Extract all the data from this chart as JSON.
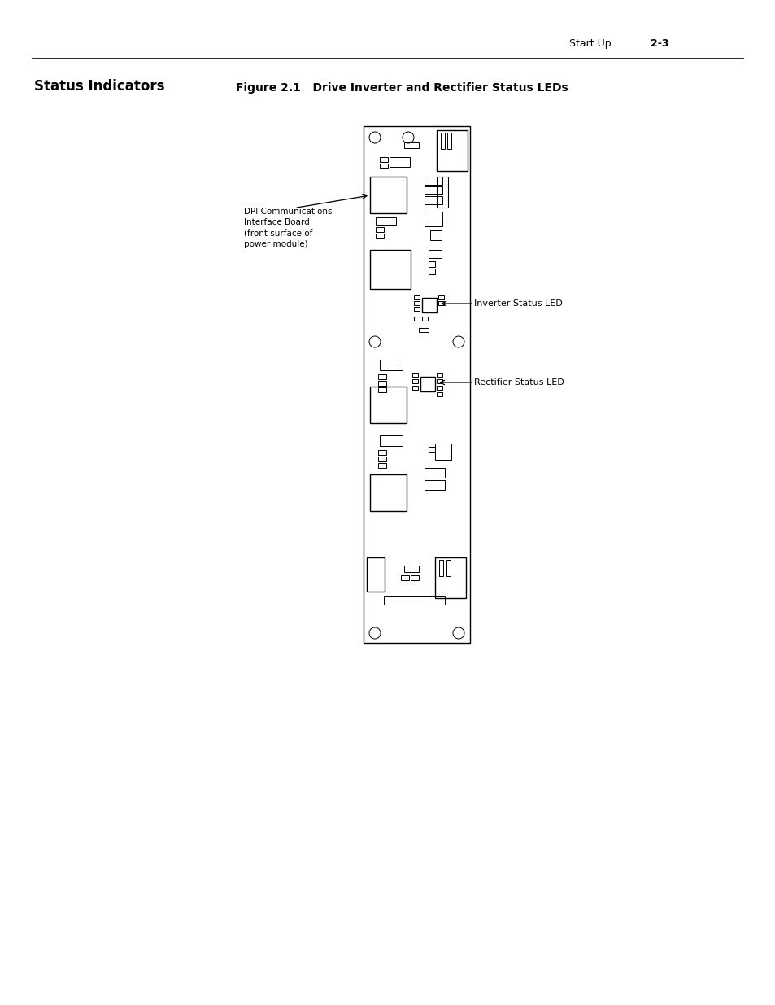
{
  "page_header_left": "Start Up",
  "page_header_right": "2-3",
  "section_title": "Status Indicators",
  "figure_title": "Figure 2.1   Drive Inverter and Rectifier Status LEDs",
  "label_dpi": "DPI Communications\nInterface Board\n(front surface of\npower module)",
  "label_inverter": "Inverter Status LED",
  "label_rectifier": "Rectifier Status LED",
  "bg_color": "#ffffff",
  "line_color": "#000000",
  "text_color": "#000000"
}
